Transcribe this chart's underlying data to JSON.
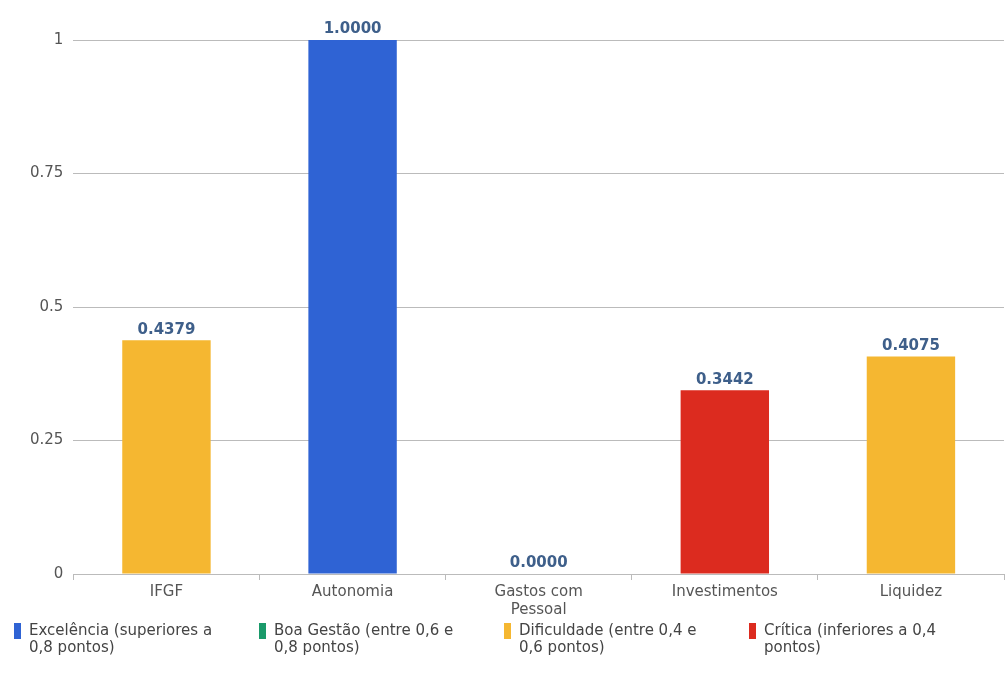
{
  "chart_data": {
    "type": "bar",
    "categories": [
      "IFGF",
      "Autonomia",
      "Gastos com Pessoal",
      "Investimentos",
      "Liquidez"
    ],
    "series": [
      {
        "name": "Excelência (superiores a 0,8 pontos)",
        "color": "#2f63d4",
        "values": [
          null,
          1,
          null,
          null,
          null
        ],
        "value_labels": [
          null,
          "1.0000",
          null,
          null,
          null
        ]
      },
      {
        "name": "Boa Gestão (entre 0,6 e 0,8 pontos)",
        "color": "#1a9a6a",
        "values": [
          null,
          null,
          null,
          null,
          null
        ]
      },
      {
        "name": "Dificuldade (entre 0,4 e 0,6 pontos)",
        "color": "#f5b731",
        "values": [
          0.4379,
          null,
          null,
          null,
          0.4075
        ],
        "value_labels": [
          "0.4379",
          null,
          null,
          null,
          "0.4075"
        ]
      },
      {
        "name": "Crítica (inferiores a 0,4 pontos)",
        "color": "#dc2b1f",
        "values": [
          null,
          null,
          0,
          0.3442,
          null
        ],
        "value_labels": [
          null,
          null,
          "0.0000",
          "0.3442",
          null
        ]
      }
    ],
    "ylim": [
      0,
      1
    ],
    "yticks": [
      0,
      0.25,
      0.5,
      0.75,
      1
    ],
    "grid": "y",
    "legend": "bottom"
  }
}
